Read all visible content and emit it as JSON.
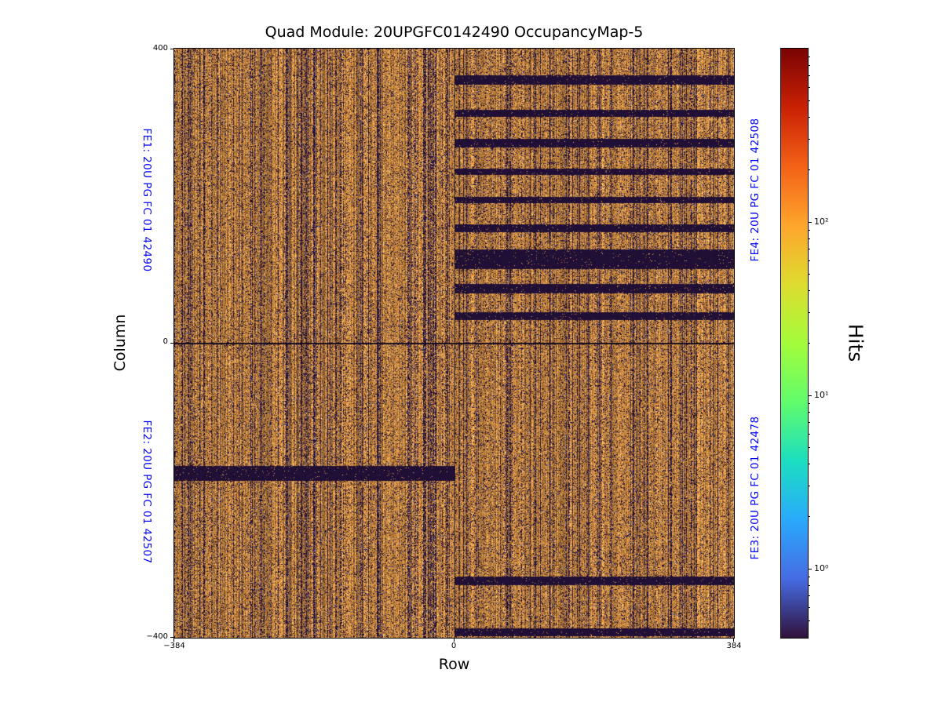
{
  "chart_data": {
    "type": "heatmap",
    "title": "Quad Module: 20UPGFC0142490 OccupancyMap-5",
    "xlabel": "Row",
    "ylabel": "Column",
    "xlim": [
      -384,
      384
    ],
    "ylim": [
      -400,
      400
    ],
    "xticks": [
      "−384",
      "0",
      "384"
    ],
    "yticks": [
      "400",
      "0",
      "−400"
    ],
    "grid": false,
    "fe_label_color": "#0000ff",
    "fe_labels": [
      {
        "id": "FE1",
        "text": "FE1: 20U PG FC 01 42490",
        "side": "left",
        "half": "top"
      },
      {
        "id": "FE2",
        "text": "FE2: 20U PG FC 01 42507",
        "side": "left",
        "half": "bottom"
      },
      {
        "id": "FE4",
        "text": "FE4: 20U PG FC 01 42508",
        "side": "right",
        "half": "top"
      },
      {
        "id": "FE3",
        "text": "FE3: 20U PG FC 01 42478",
        "side": "right",
        "half": "bottom"
      }
    ],
    "colorbar": {
      "label": "Hits",
      "scale": "log",
      "vmin": 0.4,
      "vmax": 1000,
      "ticks": [
        {
          "value": 1,
          "label": "10⁰"
        },
        {
          "value": 10,
          "label": "10¹"
        },
        {
          "value": 100,
          "label": "10²"
        }
      ],
      "gradient": [
        "#7a0403",
        "#ca2105",
        "#f36116",
        "#fea52c",
        "#dedc2f",
        "#a4fc3b",
        "#61fc6c",
        "#1bdec0",
        "#29aafc",
        "#466be3",
        "#30123b"
      ]
    },
    "texture": {
      "seed": 1337,
      "orange_palette": [
        "#a8682a",
        "#bf7d34",
        "#d08c40",
        "#dd9c4e",
        "#e7ad63"
      ],
      "dark_palette": [
        "#160a28",
        "#241240",
        "#35205a",
        "#1d0f33"
      ],
      "blue_accent": "#4663d8",
      "dark_col_fraction_left": 0.2,
      "dark_col_fraction_right": 0.13,
      "base_dark_prob": 0.18,
      "band_color": "#1a0c2f",
      "zero_line_color": "#0d0618"
    },
    "dead_bands": [
      {
        "row_range": [
          0,
          384
        ],
        "col_range": [
          351,
          364
        ]
      },
      {
        "row_range": [
          0,
          384
        ],
        "col_range": [
          307,
          317
        ]
      },
      {
        "row_range": [
          0,
          384
        ],
        "col_range": [
          266,
          277
        ]
      },
      {
        "row_range": [
          0,
          384
        ],
        "col_range": [
          228,
          237
        ]
      },
      {
        "row_range": [
          0,
          384
        ],
        "col_range": [
          190,
          199
        ]
      },
      {
        "row_range": [
          0,
          384
        ],
        "col_range": [
          151,
          161
        ]
      },
      {
        "row_range": [
          0,
          384
        ],
        "col_range": [
          101,
          127
        ]
      },
      {
        "row_range": [
          0,
          384
        ],
        "col_range": [
          68,
          80
        ]
      },
      {
        "row_range": [
          0,
          384
        ],
        "col_range": [
          31,
          42
        ]
      },
      {
        "row_range": [
          -384,
          0
        ],
        "col_range": [
          -187,
          -167
        ]
      },
      {
        "row_range": [
          0,
          384
        ],
        "col_range": [
          -329,
          -317
        ]
      },
      {
        "row_range": [
          0,
          384
        ],
        "col_range": [
          -398,
          -387
        ]
      }
    ],
    "zero_lines": {
      "horizontal_at_col": 0,
      "vertical_at_row": 0
    }
  }
}
